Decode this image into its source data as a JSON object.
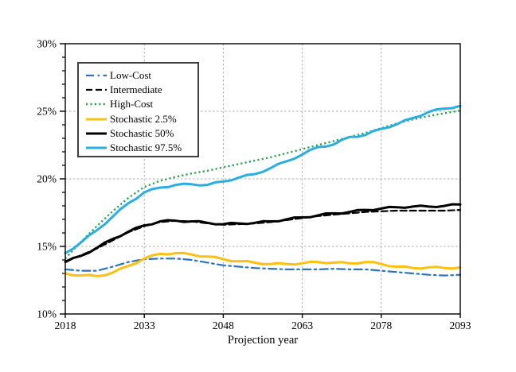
{
  "chart_data": {
    "type": "line",
    "title": "",
    "xlabel": "Projection year",
    "ylabel": "",
    "xlim": [
      2018,
      2093
    ],
    "ylim": [
      10,
      30
    ],
    "x_ticks": [
      2018,
      2033,
      2048,
      2063,
      2078,
      2093
    ],
    "y_ticks": [
      {
        "value": 10,
        "label": "10%"
      },
      {
        "value": 15,
        "label": "15%"
      },
      {
        "value": 20,
        "label": "20%"
      },
      {
        "value": 25,
        "label": "25%"
      },
      {
        "value": 30,
        "label": "30%"
      }
    ],
    "grid": {
      "vertical_at": [
        2033,
        2048,
        2063,
        2078
      ],
      "horizontal_at": [
        15,
        20,
        25
      ],
      "style": "dashed",
      "color": "#adadad"
    },
    "legend_position": "upper-left-inside",
    "x": [
      2018,
      2021,
      2024,
      2027,
      2030,
      2033,
      2036,
      2039,
      2042,
      2045,
      2048,
      2051,
      2054,
      2057,
      2060,
      2063,
      2066,
      2069,
      2072,
      2075,
      2078,
      2081,
      2084,
      2087,
      2090,
      2093
    ],
    "series": [
      {
        "name": "Low-Cost",
        "color": "#2b73be",
        "style": "dashdot",
        "width": 2.2,
        "noisy": false,
        "values": [
          13.3,
          13.2,
          13.2,
          13.5,
          13.85,
          14.05,
          14.1,
          14.1,
          14.0,
          13.8,
          13.6,
          13.5,
          13.4,
          13.35,
          13.3,
          13.3,
          13.3,
          13.35,
          13.3,
          13.3,
          13.2,
          13.1,
          13.0,
          12.9,
          12.85,
          12.9
        ]
      },
      {
        "name": "Intermediate",
        "color": "#000000",
        "style": "dashed",
        "width": 2.2,
        "noisy": false,
        "values": [
          13.9,
          14.35,
          14.85,
          15.45,
          16.05,
          16.5,
          16.8,
          16.9,
          16.85,
          16.7,
          16.6,
          16.65,
          16.7,
          16.8,
          16.95,
          17.1,
          17.25,
          17.35,
          17.45,
          17.55,
          17.6,
          17.65,
          17.65,
          17.65,
          17.65,
          17.7
        ]
      },
      {
        "name": "High-Cost",
        "color": "#2ea352",
        "style": "dotted",
        "width": 2.4,
        "noisy": false,
        "values": [
          14.1,
          15.35,
          16.5,
          17.6,
          18.6,
          19.4,
          19.85,
          20.15,
          20.4,
          20.6,
          20.85,
          21.1,
          21.35,
          21.6,
          21.9,
          22.2,
          22.5,
          22.8,
          23.1,
          23.4,
          23.75,
          24.1,
          24.4,
          24.65,
          24.85,
          25.05
        ]
      },
      {
        "name": "Stochastic 2.5%",
        "color": "#fcc011",
        "style": "solid",
        "width": 3.0,
        "noisy": true,
        "values": [
          13.0,
          12.85,
          12.8,
          13.05,
          13.55,
          14.1,
          14.45,
          14.5,
          14.4,
          14.25,
          14.05,
          13.9,
          13.8,
          13.7,
          13.7,
          13.75,
          13.85,
          13.8,
          13.75,
          13.85,
          13.7,
          13.5,
          13.4,
          13.45,
          13.4,
          13.45
        ]
      },
      {
        "name": "Stochastic 50%",
        "color": "#000000",
        "style": "solid",
        "width": 3.0,
        "noisy": true,
        "values": [
          13.85,
          14.3,
          14.9,
          15.55,
          16.1,
          16.55,
          16.85,
          16.9,
          16.85,
          16.75,
          16.65,
          16.7,
          16.75,
          16.85,
          17.0,
          17.15,
          17.3,
          17.45,
          17.55,
          17.7,
          17.8,
          17.9,
          17.95,
          17.95,
          18.0,
          18.1
        ]
      },
      {
        "name": "Stochastic 97.5%",
        "color": "#29aee4",
        "style": "solid",
        "width": 3.0,
        "noisy": true,
        "values": [
          14.5,
          15.3,
          16.2,
          17.2,
          18.2,
          19.0,
          19.35,
          19.55,
          19.6,
          19.55,
          19.8,
          20.1,
          20.35,
          20.8,
          21.3,
          21.8,
          22.35,
          22.55,
          23.1,
          23.25,
          23.7,
          24.05,
          24.5,
          24.95,
          25.2,
          25.4
        ]
      }
    ]
  }
}
